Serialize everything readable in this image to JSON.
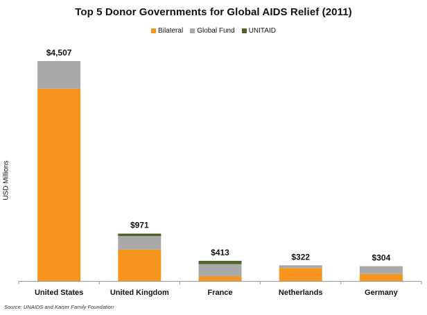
{
  "chart_data": {
    "type": "bar",
    "stacked": true,
    "title": "Top 5 Donor Governments for Global AIDS Relief (2011)",
    "ylabel": "USD Millions",
    "xlabel": "",
    "categories": [
      "United States",
      "United Kingdom",
      "France",
      "Netherlands",
      "Germany"
    ],
    "totals_labels": [
      "$4,507",
      "$971",
      "$413",
      "$322",
      "$304"
    ],
    "totals": [
      4507,
      971,
      413,
      322,
      304
    ],
    "series": [
      {
        "name": "Bilateral",
        "color": "#f7941d",
        "values": [
          3941,
          645,
          93,
          267,
          144
        ]
      },
      {
        "name": "Global Fund",
        "color": "#aaaaaa",
        "values": [
          566,
          275,
          253,
          55,
          160
        ]
      },
      {
        "name": "UNITAID",
        "color": "#4f6228",
        "values": [
          0,
          51,
          67,
          0,
          0
        ]
      }
    ],
    "ylim": [
      0,
      4507
    ],
    "grid": false,
    "legend": "top-center",
    "source": "Source: UNAIDS and Kaiser Family Foundation"
  }
}
